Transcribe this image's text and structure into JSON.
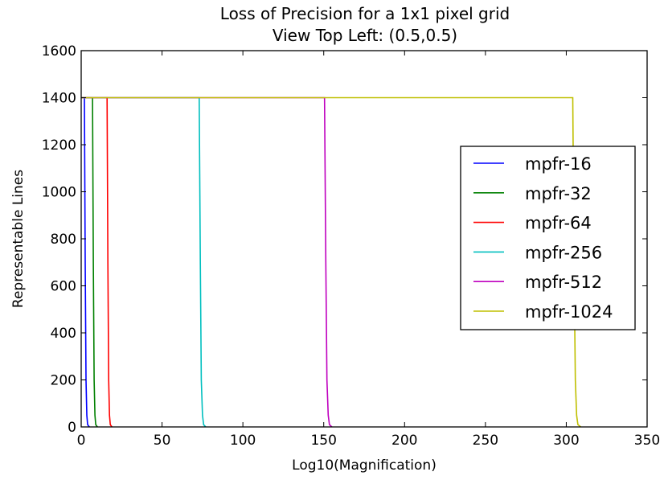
{
  "chart_data": {
    "type": "line",
    "title": "Loss of Precision for a 1x1 pixel grid",
    "subtitle": "View Top Left: (0.5,0.5)",
    "xlabel": "Log10(Magnification)",
    "ylabel": "Representable Lines",
    "xlim": [
      0,
      350
    ],
    "ylim": [
      0,
      1600
    ],
    "xticks": [
      "0",
      "50",
      "100",
      "150",
      "200",
      "250",
      "300",
      "350"
    ],
    "yticks": [
      "0",
      "200",
      "400",
      "600",
      "800",
      "1000",
      "1200",
      "1400",
      "1600"
    ],
    "grid": false,
    "legend_position": "center-right",
    "series": [
      {
        "name": "mpfr-16",
        "color": "#0000ff",
        "x": [
          0,
          1.0,
          2.0,
          2.5,
          3.0,
          3.5,
          4.0,
          5.0
        ],
        "y": [
          1400,
          1400,
          1400,
          700,
          200,
          50,
          10,
          0
        ]
      },
      {
        "name": "mpfr-32",
        "color": "#008000",
        "x": [
          0,
          6.0,
          7.0,
          7.5,
          8.0,
          8.5,
          9.0,
          10.0
        ],
        "y": [
          1400,
          1400,
          1400,
          700,
          200,
          50,
          10,
          0
        ]
      },
      {
        "name": "mpfr-64",
        "color": "#ff0000",
        "x": [
          0,
          15.0,
          16.0,
          16.5,
          17.0,
          17.5,
          18.0,
          19.0
        ],
        "y": [
          1400,
          1400,
          1400,
          700,
          200,
          50,
          10,
          0
        ]
      },
      {
        "name": "mpfr-256",
        "color": "#00bfbf",
        "x": [
          0,
          72.0,
          73.0,
          73.7,
          74.3,
          75.0,
          75.7,
          77.0
        ],
        "y": [
          1400,
          1400,
          1400,
          700,
          200,
          50,
          10,
          0
        ]
      },
      {
        "name": "mpfr-512",
        "color": "#bf00bf",
        "x": [
          0,
          149.0,
          150.5,
          151.3,
          152.0,
          152.8,
          153.5,
          155.0
        ],
        "y": [
          1400,
          1400,
          1400,
          700,
          200,
          50,
          10,
          0
        ]
      },
      {
        "name": "mpfr-1024",
        "color": "#bfbf00",
        "x": [
          0,
          302.0,
          304.0,
          304.8,
          305.6,
          306.4,
          307.2,
          309.0
        ],
        "y": [
          1400,
          1400,
          1400,
          700,
          200,
          50,
          10,
          0
        ]
      }
    ]
  }
}
